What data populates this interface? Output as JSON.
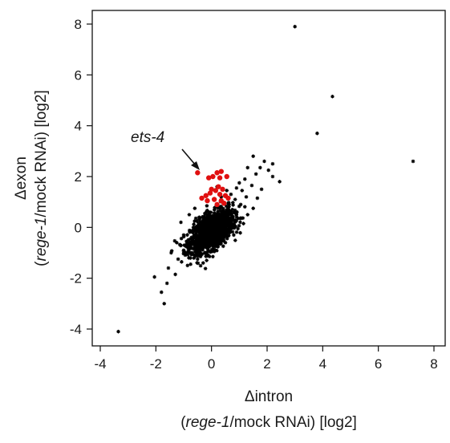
{
  "chart_data": {
    "type": "scatter",
    "x_axis": {
      "label_delta": "Δintron",
      "label_paren_open": "(",
      "label_gene": "rege-1",
      "label_rest": "/mock RNAi) [log2]",
      "ticks": [
        -4,
        -2,
        0,
        2,
        4,
        6,
        8
      ],
      "tick_labels": [
        "-4",
        "-2",
        "0",
        "2",
        "4",
        "6",
        "8"
      ],
      "range": [
        -4.3,
        8.5
      ]
    },
    "y_axis": {
      "label_delta": "Δexon",
      "label_paren_open": "(",
      "label_gene": "rege-1",
      "label_rest": "/mock RNAi) [log2]",
      "ticks": [
        -4,
        -2,
        0,
        2,
        4,
        6,
        8
      ],
      "tick_labels": [
        "-4",
        "-2",
        "0",
        "2",
        "4",
        "6",
        "8"
      ],
      "range": [
        -4.5,
        8.5
      ]
    },
    "grid": false,
    "annotation": {
      "text": "ets-4",
      "points_to": [
        -0.5,
        2.15
      ]
    },
    "colors": {
      "background_points": "#000000",
      "highlighted_points": "#e01010"
    },
    "series": [
      {
        "marker": "star",
        "color": "#000000",
        "points": [
          [
            3.0,
            7.9
          ],
          [
            4.35,
            5.15
          ],
          [
            3.8,
            3.7
          ],
          [
            7.25,
            2.6
          ],
          [
            -3.35,
            -4.1
          ],
          [
            -1.7,
            -3.0
          ],
          [
            -2.05,
            -1.95
          ],
          [
            -1.55,
            -1.6
          ],
          [
            -1.2,
            -1.25
          ],
          [
            -1.45,
            -1.0
          ],
          [
            -1.0,
            -0.9
          ],
          [
            -1.8,
            -2.55
          ],
          [
            -1.3,
            -1.85
          ],
          [
            -1.6,
            -2.2
          ],
          [
            1.5,
            2.8
          ],
          [
            1.9,
            2.6
          ],
          [
            2.2,
            2.5
          ],
          [
            2.45,
            1.8
          ],
          [
            2.05,
            2.25
          ],
          [
            1.75,
            2.35
          ],
          [
            1.3,
            2.35
          ],
          [
            1.6,
            2.1
          ],
          [
            1.2,
            1.9
          ],
          [
            1.45,
            1.65
          ],
          [
            1.0,
            1.75
          ],
          [
            1.8,
            1.5
          ],
          [
            2.2,
            2.0
          ],
          [
            1.1,
            1.45
          ],
          [
            0.9,
            1.55
          ],
          [
            0.7,
            1.3
          ],
          [
            1.25,
            1.2
          ],
          [
            0.85,
            1.1
          ],
          [
            0.6,
            0.95
          ],
          [
            1.05,
            0.9
          ],
          [
            0.5,
            0.6
          ],
          [
            0.75,
            0.7
          ],
          [
            1.3,
            0.5
          ],
          [
            0.95,
            0.35
          ],
          [
            1.5,
            0.75
          ],
          [
            1.65,
            1.15
          ],
          [
            0.35,
            1.2
          ],
          [
            0.55,
            1.45
          ],
          [
            0.2,
            1.6
          ],
          [
            -0.8,
            0.5
          ],
          [
            -1.0,
            -0.3
          ],
          [
            -0.9,
            -0.55
          ],
          [
            -0.7,
            -1.0
          ],
          [
            -0.5,
            -1.25
          ],
          [
            -0.3,
            -1.4
          ],
          [
            0.1,
            -0.95
          ],
          [
            0.5,
            -0.6
          ],
          [
            0.8,
            -0.3
          ],
          [
            0.7,
            0.3
          ],
          [
            -1.1,
            0.2
          ],
          [
            -0.6,
            0.75
          ],
          [
            -1.25,
            -0.6
          ],
          [
            -0.75,
            -1.45
          ],
          [
            0.05,
            -1.15
          ],
          [
            0.95,
            -0.05
          ],
          [
            1.15,
            0.15
          ]
        ],
        "cluster": {
          "center": [
            0.0,
            -0.15
          ],
          "sd_x": 0.38,
          "sd_y": 0.4,
          "correlation": 0.55,
          "count": 1400
        }
      },
      {
        "marker": "circle",
        "color": "#e01010",
        "points": [
          [
            -0.5,
            2.15
          ],
          [
            -0.1,
            1.95
          ],
          [
            0.05,
            2.0
          ],
          [
            0.2,
            2.15
          ],
          [
            0.35,
            2.2
          ],
          [
            0.3,
            1.95
          ],
          [
            0.55,
            2.0
          ],
          [
            0.25,
            1.6
          ],
          [
            0.4,
            1.5
          ],
          [
            0.15,
            1.45
          ],
          [
            -0.05,
            1.35
          ],
          [
            0.3,
            1.3
          ],
          [
            0.5,
            1.25
          ],
          [
            0.1,
            1.1
          ],
          [
            -0.15,
            1.05
          ],
          [
            0.35,
            1.05
          ],
          [
            0.6,
            1.15
          ],
          [
            -0.35,
            1.15
          ],
          [
            0.2,
            0.9
          ],
          [
            0.45,
            0.95
          ],
          [
            -0.2,
            1.25
          ],
          [
            0.0,
            1.5
          ]
        ]
      }
    ]
  }
}
